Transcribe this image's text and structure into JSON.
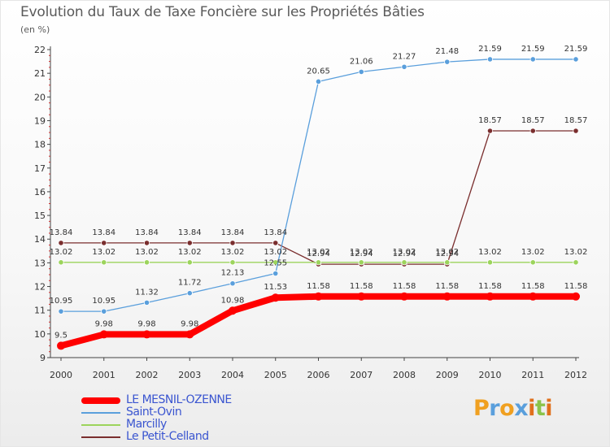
{
  "title": "Evolution du Taux de Taxe Foncière sur les Propriétés Bâties",
  "subtitle": "(en %)",
  "logo": {
    "text": "Proxiti",
    "letters": [
      "P",
      "r",
      "o",
      "x",
      "i",
      "t",
      "i"
    ],
    "colors": [
      "#f0a020",
      "#5a9fdc",
      "#f0a020",
      "#5a9fdc",
      "#e0701c",
      "#8bc34a",
      "#e0701c"
    ]
  },
  "chart_data": {
    "type": "line",
    "title": "Evolution du Taux de Taxe Foncière sur les Propriétés Bâties",
    "ylabel": "(en %)",
    "xlabel": "",
    "ylim": [
      9,
      22
    ],
    "yticks": [
      9,
      10,
      11,
      12,
      13,
      14,
      15,
      16,
      17,
      18,
      19,
      20,
      21,
      22
    ],
    "categories": [
      "2000",
      "2001",
      "2002",
      "2003",
      "2004",
      "2005",
      "2006",
      "2007",
      "2008",
      "2009",
      "2010",
      "2011",
      "2012"
    ],
    "series": [
      {
        "name": "LE MESNIL-OZENNE",
        "color": "#ff0000",
        "width": 8,
        "values": [
          9.5,
          9.98,
          9.98,
          9.98,
          10.98,
          11.53,
          11.58,
          11.58,
          11.58,
          11.58,
          11.58,
          11.58,
          11.58
        ],
        "labels": [
          "9.5",
          "9.98",
          "9.98",
          "9.98",
          "10.98",
          "11.53",
          "11.58",
          "11.58",
          "11.58",
          "11.58",
          "11.58",
          "11.58",
          "11.58"
        ]
      },
      {
        "name": "Saint-Ovin",
        "color": "#5a9fdc",
        "width": 1.3,
        "values": [
          10.95,
          10.95,
          11.32,
          11.72,
          12.13,
          12.55,
          20.65,
          21.06,
          21.27,
          21.48,
          21.59,
          21.59,
          21.59
        ],
        "labels": [
          "10.95",
          "10.95",
          "11.32",
          "11.72",
          "12.13",
          "12.55",
          "20.65",
          "21.06",
          "21.27",
          "21.48",
          "21.59",
          "21.59",
          "21.59"
        ]
      },
      {
        "name": "Marcilly",
        "color": "#9cd45c",
        "width": 1.3,
        "values": [
          13.02,
          13.02,
          13.02,
          13.02,
          13.02,
          13.02,
          13.02,
          13.02,
          13.02,
          13.02,
          13.02,
          13.02,
          13.02
        ],
        "labels": [
          "13.02",
          "13.02",
          "13.02",
          "13.02",
          "13.02",
          "13.02",
          "13.02",
          "13.02",
          "13.02",
          "13.02",
          "13.02",
          "13.02",
          "13.02"
        ]
      },
      {
        "name": "Le Petit-Celland",
        "color": "#7a2e2e",
        "width": 1.3,
        "values": [
          13.84,
          13.84,
          13.84,
          13.84,
          13.84,
          13.84,
          12.94,
          12.94,
          12.94,
          12.94,
          18.57,
          18.57,
          18.57
        ],
        "labels": [
          "13.84",
          "13.84",
          "13.84",
          "13.84",
          "13.84",
          "13.84",
          "12.94",
          "12.94",
          "12.94",
          "12.94",
          "18.57",
          "18.57",
          "18.57"
        ]
      }
    ],
    "grid": false,
    "legend": "bottom-left"
  }
}
